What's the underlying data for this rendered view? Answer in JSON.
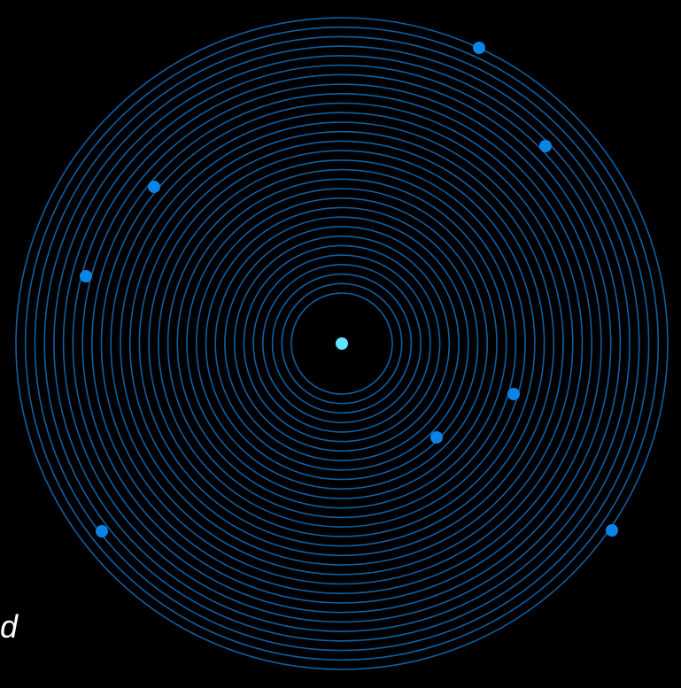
{
  "diagram": {
    "ring_color": "#0f5fa3",
    "dot_color": "#0b84e6",
    "center_dot_color": "#5fe6ff",
    "ring_count": 30,
    "edge_text": "d",
    "orbit_dots": [
      {
        "name": "orbit-dot-1"
      },
      {
        "name": "orbit-dot-2"
      },
      {
        "name": "orbit-dot-3"
      },
      {
        "name": "orbit-dot-4"
      },
      {
        "name": "orbit-dot-5"
      },
      {
        "name": "orbit-dot-6"
      },
      {
        "name": "orbit-dot-7"
      },
      {
        "name": "orbit-dot-8"
      }
    ]
  }
}
